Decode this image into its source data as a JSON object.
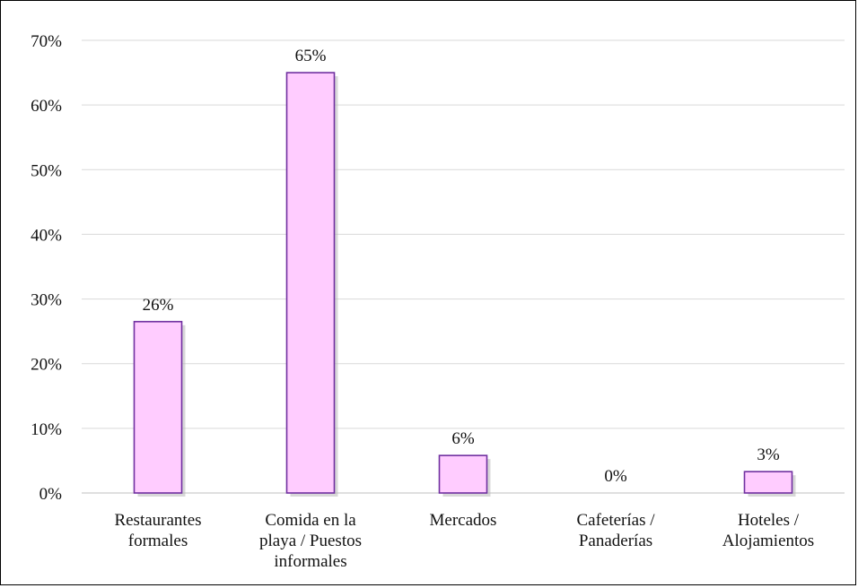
{
  "chart_data": {
    "type": "bar",
    "categories": [
      [
        "Restaurantes",
        "formales"
      ],
      [
        "Comida en la",
        "playa / Puestos",
        "informales"
      ],
      [
        "Mercados"
      ],
      [
        "Cafeterías /",
        "Panaderías"
      ],
      [
        "Hoteles /",
        "Alojamientos"
      ]
    ],
    "values": [
      26.5,
      65,
      5.8,
      0,
      3.3
    ],
    "data_labels": [
      "26%",
      "65%",
      "6%",
      "0%",
      "3%"
    ],
    "title": "",
    "xlabel": "",
    "ylabel": "",
    "ylim": [
      0,
      70
    ],
    "yticks": [
      "0%",
      "10%",
      "20%",
      "30%",
      "40%",
      "50%",
      "60%",
      "70%"
    ],
    "grid": true,
    "legend": "none"
  },
  "colors": {
    "bar_fill": "#FFCCFF",
    "bar_stroke": "#7030A0",
    "grid": "#D9D9D9",
    "shadow": "#B8B8B8"
  }
}
